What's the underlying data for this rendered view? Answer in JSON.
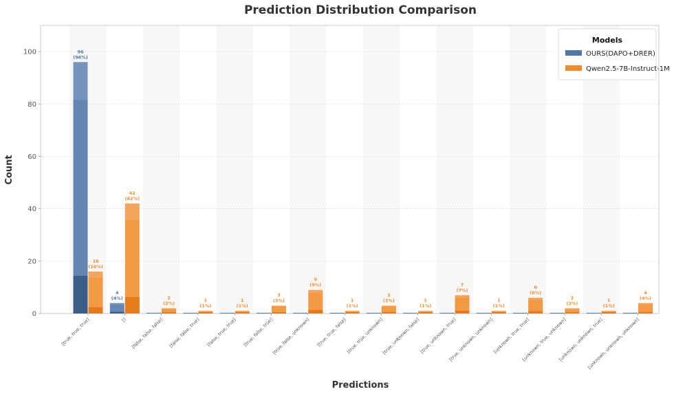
{
  "chart_data": {
    "type": "bar",
    "title": "Prediction Distribution Comparison",
    "xlabel": "Predictions",
    "ylabel": "Count",
    "ylim": [
      0,
      110
    ],
    "yticks": [
      0,
      20,
      40,
      60,
      80,
      100
    ],
    "grid": true,
    "legend": {
      "title": "Models",
      "placement": "top-right"
    },
    "categories": [
      "[true, true, true]",
      "[]",
      "[false, false, false]",
      "[false, false, true]",
      "[false, true, true]",
      "[true, false, true]",
      "[true, false, unknown]",
      "[true, true, false]",
      "[true, true, unknown]",
      "[true, unknown, false]",
      "[true, unknown, true]",
      "[true, unknown, unknown]",
      "[unknown, true, true]",
      "[unknown, true, unknown]",
      "[unknown, unknown, true]",
      "[unknown, unknown, unknown]"
    ],
    "series": [
      {
        "name": "OURS(DAPO+DRER)",
        "color": "#4e76a8",
        "values": [
          96,
          4,
          0,
          0,
          0,
          0,
          0,
          0,
          0,
          0,
          0,
          0,
          0,
          0,
          0,
          0
        ],
        "labels": [
          [
            "96",
            "(96%)"
          ],
          [
            "4",
            "(4%)"
          ],
          null,
          null,
          null,
          null,
          null,
          null,
          null,
          null,
          null,
          null,
          null,
          null,
          null,
          null
        ]
      },
      {
        "name": "Qwen2.5-7B-Instruct-1M",
        "color": "#f08c2a",
        "values": [
          16,
          42,
          2,
          1,
          1,
          3,
          9,
          1,
          3,
          1,
          7,
          1,
          6,
          2,
          1,
          4
        ],
        "labels": [
          [
            "16",
            "(16%)"
          ],
          [
            "42",
            "(42%)"
          ],
          [
            "2",
            "(2%)"
          ],
          [
            "1",
            "(1%)"
          ],
          [
            "1",
            "(1%)"
          ],
          [
            "3",
            "(3%)"
          ],
          [
            "9",
            "(9%)"
          ],
          [
            "1",
            "(1%)"
          ],
          [
            "3",
            "(3%)"
          ],
          [
            "1",
            "(1%)"
          ],
          [
            "7",
            "(7%)"
          ],
          [
            "1",
            "(1%)"
          ],
          [
            "6",
            "(6%)"
          ],
          [
            "2",
            "(2%)"
          ],
          [
            "1",
            "(1%)"
          ],
          [
            "4",
            "(4%)"
          ]
        ]
      }
    ]
  }
}
